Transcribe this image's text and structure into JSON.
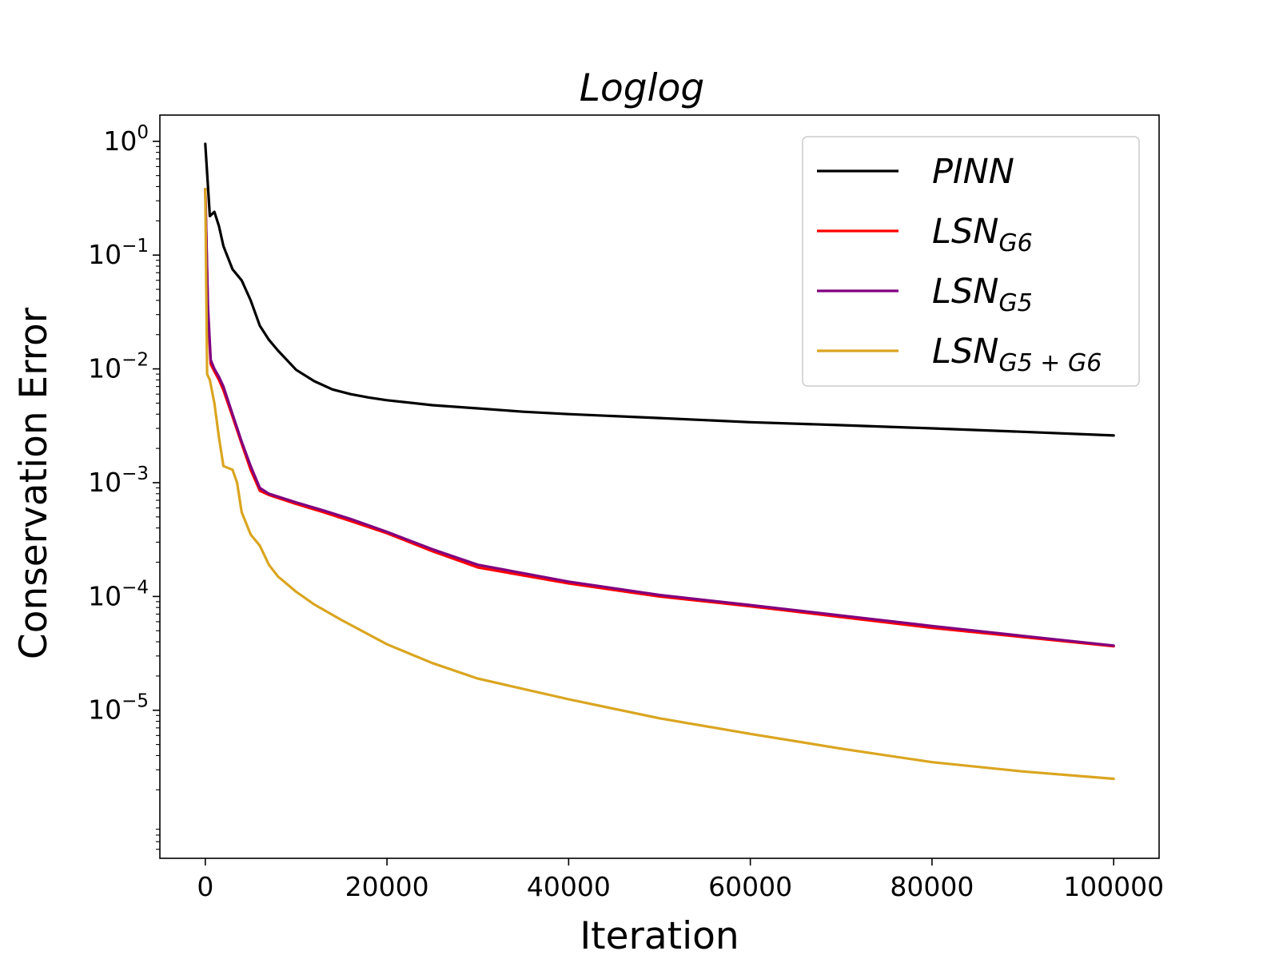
{
  "chart_data": {
    "type": "line",
    "title": "Loglog",
    "xlabel": "Iteration",
    "ylabel": "Conservation Error",
    "xlim": [
      -5000,
      105000
    ],
    "ylim": [
      5e-07,
      1.7
    ],
    "yscale": "log",
    "xticks": [
      0,
      20000,
      40000,
      60000,
      80000,
      100000
    ],
    "xtick_labels": [
      "0",
      "20000",
      "40000",
      "60000",
      "80000",
      "100000"
    ],
    "yticks": [
      {
        "value": 1,
        "base": "10",
        "exp": "0"
      },
      {
        "value": 0.1,
        "base": "10",
        "exp": "−1"
      },
      {
        "value": 0.01,
        "base": "10",
        "exp": "−2"
      },
      {
        "value": 0.001,
        "base": "10",
        "exp": "−3"
      },
      {
        "value": 0.0001,
        "base": "10",
        "exp": "−4"
      },
      {
        "value": 1e-05,
        "base": "10",
        "exp": "−5"
      }
    ],
    "grid": false,
    "legend_position": "top-right",
    "series": [
      {
        "name": "PINN",
        "name_main": "PINN",
        "name_sub": "",
        "color": "#000000",
        "x": [
          0,
          500,
          1000,
          1500,
          2000,
          3000,
          4000,
          5000,
          6000,
          7000,
          8000,
          10000,
          12000,
          14000,
          16000,
          18000,
          20000,
          25000,
          30000,
          35000,
          40000,
          50000,
          60000,
          70000,
          80000,
          90000,
          100000
        ],
        "y": [
          0.95,
          0.22,
          0.24,
          0.18,
          0.12,
          0.075,
          0.06,
          0.04,
          0.024,
          0.018,
          0.0145,
          0.0098,
          0.0078,
          0.0066,
          0.006,
          0.0056,
          0.0053,
          0.0048,
          0.0045,
          0.0042,
          0.004,
          0.0037,
          0.0034,
          0.0032,
          0.003,
          0.0028,
          0.0026
        ]
      },
      {
        "name": "LSN_G6",
        "name_main": "LSN",
        "name_sub": "G6",
        "color": "#ff0000",
        "x": [
          0,
          300,
          600,
          1000,
          1500,
          2000,
          3000,
          4000,
          5000,
          6000,
          7000,
          10000,
          13000,
          16000,
          20000,
          25000,
          30000,
          40000,
          50000,
          60000,
          70000,
          80000,
          90000,
          100000
        ],
        "y": [
          0.38,
          0.03,
          0.011,
          0.0095,
          0.008,
          0.0065,
          0.0038,
          0.0022,
          0.0013,
          0.00085,
          0.00078,
          0.00065,
          0.00055,
          0.00046,
          0.00036,
          0.00025,
          0.00018,
          0.00013,
          0.0001,
          8.2e-05,
          6.6e-05,
          5.3e-05,
          4.4e-05,
          3.65e-05
        ]
      },
      {
        "name": "LSN_G5",
        "name_main": "LSN",
        "name_sub": "G5",
        "color": "#800080",
        "x": [
          0,
          300,
          600,
          1000,
          1500,
          2000,
          3000,
          4000,
          5000,
          6000,
          7000,
          10000,
          13000,
          16000,
          20000,
          25000,
          30000,
          40000,
          50000,
          60000,
          70000,
          80000,
          90000,
          100000
        ],
        "y": [
          0.38,
          0.035,
          0.012,
          0.01,
          0.0085,
          0.007,
          0.004,
          0.0023,
          0.0014,
          0.0009,
          0.0008,
          0.00067,
          0.00057,
          0.00048,
          0.00037,
          0.00026,
          0.00019,
          0.000135,
          0.000103,
          8.4e-05,
          6.8e-05,
          5.5e-05,
          4.5e-05,
          3.7e-05
        ]
      },
      {
        "name": "LSN_G5+G6",
        "name_main": "LSN",
        "name_sub": "G5 + G6",
        "color": "#daa520",
        "x": [
          0,
          200,
          500,
          1000,
          1500,
          2000,
          3000,
          3500,
          4000,
          5000,
          6000,
          7000,
          8000,
          10000,
          12000,
          15000,
          20000,
          25000,
          30000,
          40000,
          50000,
          60000,
          70000,
          80000,
          90000,
          100000
        ],
        "y": [
          0.38,
          0.009,
          0.008,
          0.005,
          0.0025,
          0.0014,
          0.0013,
          0.001,
          0.00055,
          0.00035,
          0.00028,
          0.00019,
          0.00015,
          0.00011,
          8.5e-05,
          6.2e-05,
          3.8e-05,
          2.6e-05,
          1.9e-05,
          1.25e-05,
          8.5e-06,
          6.2e-06,
          4.6e-06,
          3.5e-06,
          2.9e-06,
          2.5e-06
        ]
      }
    ]
  }
}
